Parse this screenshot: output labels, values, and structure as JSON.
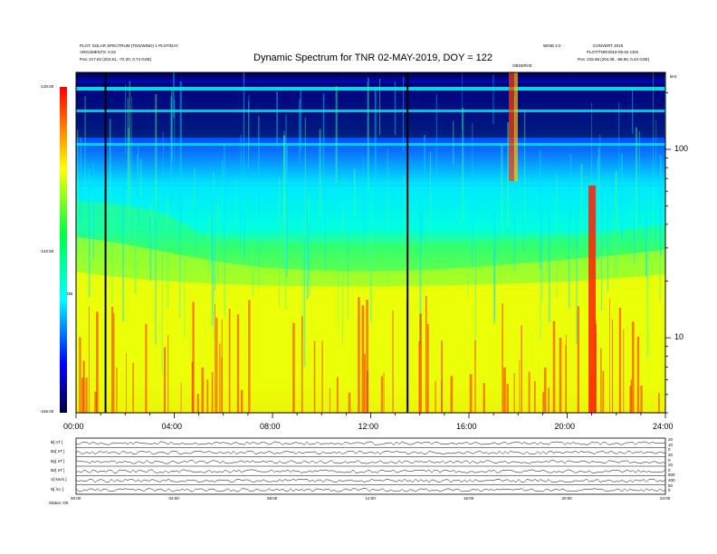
{
  "header": {
    "title": "Dynamic Spectrum for TNR 02-MAY-2019, DOY = 122",
    "left_line1": "PLOT: SOLAR SPECTRUM (TDS/WIND) 1 PLOT/DAY",
    "left_line2": "ARGUMENTS: 0.02",
    "left_line3": "Pos:  217.62 (204.51, -72.20, 0.74 GSE)",
    "right_line1": "WIND 2.0",
    "right_line2": "PLOT/TNR/2019-05-02 CDS",
    "right_line3": "Pos:  215.68 (204.39, -68.65, 0.43 GSE)",
    "right_tag": "CONVERT 2019",
    "marker_label": "OBSERVE",
    "khz_label": "kHz"
  },
  "colorbar": {
    "top_label": "-130.00",
    "mid_label": "-142.50",
    "bottom_label": "-155.00",
    "unit": "DB"
  },
  "chart_data": {
    "type": "heatmap",
    "title": "Dynamic Spectrum for TNR 02-MAY-2019, DOY = 122",
    "x_tick_labels": [
      "00:00",
      "04:00",
      "08:00",
      "12:00",
      "16:00",
      "20:00",
      "24:00"
    ],
    "x_range_hours": [
      0,
      24
    ],
    "y_scale": "log",
    "y_unit": "kHz",
    "y_tick_labels": [
      "100",
      "10"
    ],
    "y_ticks": [
      100,
      10
    ],
    "y_range_khz": [
      4,
      256
    ],
    "colorbar_range_db": [
      -155,
      -130
    ],
    "vertical_marker_hours": [
      1.2,
      13.5
    ],
    "bright_feature_hours": [
      21.0
    ],
    "intensity_profile": [
      {
        "khz": 200,
        "level": "deep blue / black bands"
      },
      {
        "khz": 100,
        "level": "blue"
      },
      {
        "khz": 50,
        "level": "cyan"
      },
      {
        "khz": 30,
        "level": "green"
      },
      {
        "khz": 15,
        "level": "yellow"
      },
      {
        "khz": 5,
        "level": "red"
      }
    ],
    "panels_below": 6
  },
  "lower_panels": {
    "labels": [
      "B[ nT ]",
      "Bx[ nT ]",
      "By[ nT ]",
      "Bz[ nT ]",
      "V[ km/s ]",
      "N[ /cc ]"
    ],
    "right_labels": [
      "20",
      "10",
      "0",
      "20",
      "0",
      "20",
      "0",
      "800",
      "400",
      "50",
      "0"
    ],
    "x_tick_labels": [
      "00:00",
      "04:00",
      "08:00",
      "12:00",
      "16:00",
      "20:00",
      "24:00"
    ],
    "footer": "Status: OK"
  },
  "colors": {
    "red": "#ff0000",
    "yellow": "#ffff00",
    "green": "#00ff40",
    "cyan": "#00ffff",
    "blue": "#0000ff",
    "dark": "#000040"
  }
}
